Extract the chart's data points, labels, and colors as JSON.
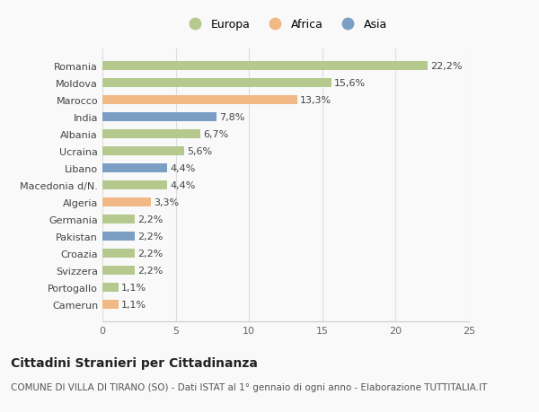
{
  "categories": [
    "Romania",
    "Moldova",
    "Marocco",
    "India",
    "Albania",
    "Ucraina",
    "Libano",
    "Macedonia d/N.",
    "Algeria",
    "Germania",
    "Pakistan",
    "Croazia",
    "Svizzera",
    "Portogallo",
    "Camerun"
  ],
  "values": [
    22.2,
    15.6,
    13.3,
    7.8,
    6.7,
    5.6,
    4.4,
    4.4,
    3.3,
    2.2,
    2.2,
    2.2,
    2.2,
    1.1,
    1.1
  ],
  "labels": [
    "22,2%",
    "15,6%",
    "13,3%",
    "7,8%",
    "6,7%",
    "5,6%",
    "4,4%",
    "4,4%",
    "3,3%",
    "2,2%",
    "2,2%",
    "2,2%",
    "2,2%",
    "1,1%",
    "1,1%"
  ],
  "continents": [
    "Europa",
    "Europa",
    "Africa",
    "Asia",
    "Europa",
    "Europa",
    "Asia",
    "Europa",
    "Africa",
    "Europa",
    "Asia",
    "Europa",
    "Europa",
    "Europa",
    "Africa"
  ],
  "colors": {
    "Europa": "#b5c98e",
    "Africa": "#f0b985",
    "Asia": "#7b9fc4"
  },
  "xlim": [
    0,
    25
  ],
  "xticks": [
    0,
    5,
    10,
    15,
    20,
    25
  ],
  "title": "Cittadini Stranieri per Cittadinanza",
  "subtitle": "COMUNE DI VILLA DI TIRANO (SO) - Dati ISTAT al 1° gennaio di ogni anno - Elaborazione TUTTITALIA.IT",
  "background_color": "#f9f9f9",
  "bar_height": 0.55,
  "title_fontsize": 10,
  "subtitle_fontsize": 7.5,
  "label_fontsize": 8,
  "tick_fontsize": 8,
  "legend_fontsize": 9
}
